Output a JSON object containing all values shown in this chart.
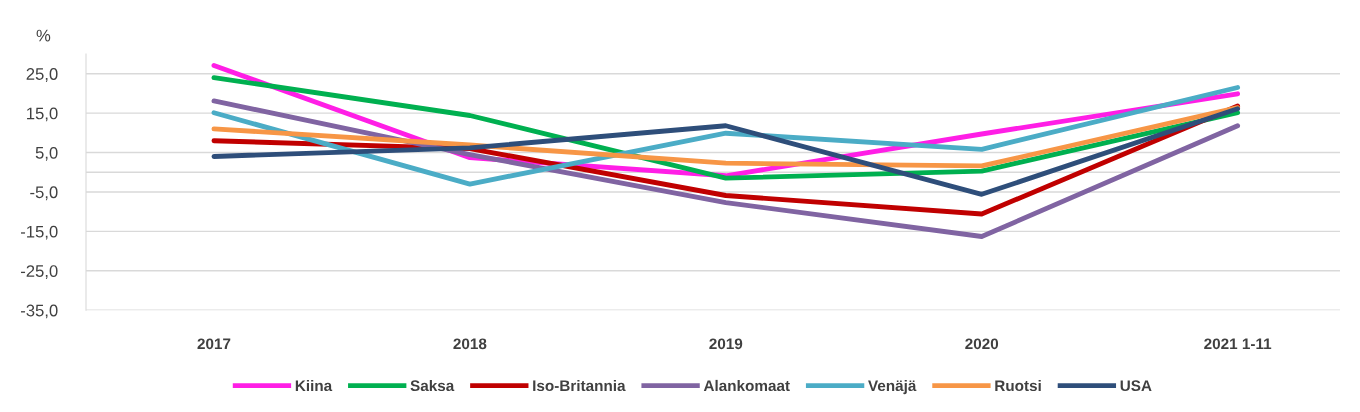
{
  "chart_data": {
    "type": "line",
    "ylabel": "%",
    "categories": [
      "2017",
      "2018",
      "2019",
      "2020",
      "2021 1-11"
    ],
    "series": [
      {
        "name": "Kiina",
        "color": "#ff1ee6",
        "values": [
          27.1,
          3.7,
          -0.9,
          9.7,
          19.9
        ]
      },
      {
        "name": "Saksa",
        "color": "#00b050",
        "values": [
          24.0,
          14.4,
          -1.5,
          0.3,
          15.1
        ]
      },
      {
        "name": "Iso-Britannia",
        "color": "#c00000",
        "values": [
          8.0,
          6.0,
          -5.9,
          -10.6,
          16.8
        ]
      },
      {
        "name": "Alankomaat",
        "color": "#8064a2",
        "values": [
          18.1,
          4.5,
          -7.7,
          -16.3,
          11.8
        ]
      },
      {
        "name": "Venäjä",
        "color": "#4bacc6",
        "values": [
          15.1,
          -3.0,
          9.9,
          5.8,
          21.5
        ]
      },
      {
        "name": "Ruotsi",
        "color": "#f79646",
        "values": [
          11.0,
          6.9,
          2.3,
          1.6,
          16.4
        ]
      },
      {
        "name": "USA",
        "color": "#2e4e7a",
        "values": [
          4.0,
          6.2,
          11.8,
          -5.6,
          16.1
        ]
      }
    ],
    "ylim": [
      -35,
      30
    ],
    "yticks": [
      {
        "value": 25,
        "label": "25,0"
      },
      {
        "value": 15,
        "label": "15,0"
      },
      {
        "value": 5,
        "label": "5,0"
      },
      {
        "value": -5,
        "label": "-5,0"
      },
      {
        "value": -15,
        "label": "-15,0"
      },
      {
        "value": -25,
        "label": "-25,0"
      },
      {
        "value": -35,
        "label": "-35,0"
      }
    ],
    "ref_lines": [
      {
        "axis": "y",
        "value": 0,
        "color": "#d9d9d9"
      }
    ],
    "grid": "y",
    "legend": "bottom",
    "marker": "none",
    "line_style": "solid"
  }
}
